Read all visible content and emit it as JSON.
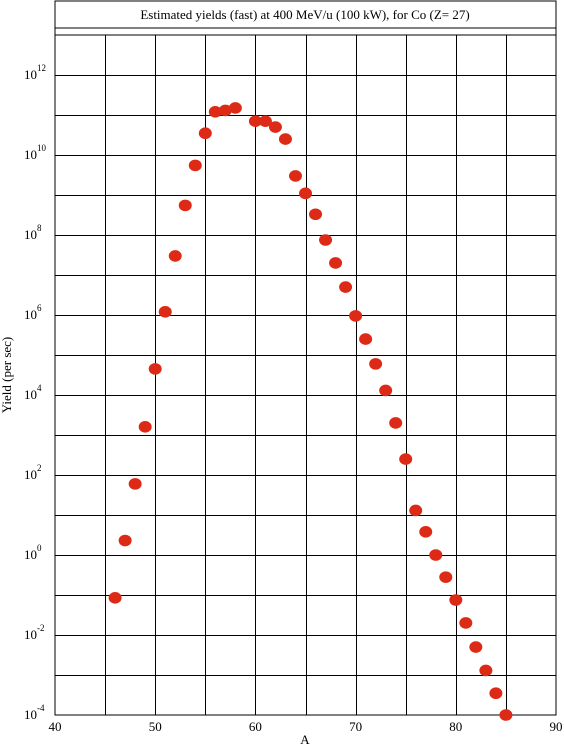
{
  "chart_data": {
    "type": "scatter",
    "title": "Estimated yields (fast) at 400 MeV/u (100 kW), for Co (Z= 27)",
    "xlabel": "A",
    "ylabel": "Yield (per sec)",
    "xlim": [
      40,
      90
    ],
    "ylim_log10": [
      -4,
      13
    ],
    "y_scale": "log",
    "grid": true,
    "legend": "none",
    "marker_color": "#dd2a16",
    "x_ticks": [
      "40",
      "50",
      "60",
      "70",
      "80",
      "90"
    ],
    "y_ticks": [
      {
        "base": "10",
        "exp": "12"
      },
      {
        "base": "10",
        "exp": "10"
      },
      {
        "base": "10",
        "exp": "8"
      },
      {
        "base": "10",
        "exp": "6"
      },
      {
        "base": "10",
        "exp": "4"
      },
      {
        "base": "10",
        "exp": "2"
      },
      {
        "base": "10",
        "exp": "0"
      },
      {
        "base": "10",
        "exp": "-2"
      },
      {
        "base": "10",
        "exp": "-4"
      }
    ],
    "points": [
      {
        "A": 46,
        "yield": 0.085
      },
      {
        "A": 47,
        "yield": 2.3
      },
      {
        "A": 48,
        "yield": 60.0
      },
      {
        "A": 49,
        "yield": 1600.0
      },
      {
        "A": 50,
        "yield": 45000.0
      },
      {
        "A": 51,
        "yield": 1200000.0
      },
      {
        "A": 52,
        "yield": 30000000.0
      },
      {
        "A": 53,
        "yield": 550000000.0
      },
      {
        "A": 54,
        "yield": 5500000000.0
      },
      {
        "A": 55,
        "yield": 35000000000.0
      },
      {
        "A": 56,
        "yield": 120000000000.0
      },
      {
        "A": 57,
        "yield": 130000000000.0
      },
      {
        "A": 58,
        "yield": 150000000000.0
      },
      {
        "A": 60,
        "yield": 70000000000.0
      },
      {
        "A": 61,
        "yield": 70000000000.0
      },
      {
        "A": 62,
        "yield": 50000000000.0
      },
      {
        "A": 63,
        "yield": 25000000000.0
      },
      {
        "A": 64,
        "yield": 3000000000.0
      },
      {
        "A": 65,
        "yield": 1100000000.0
      },
      {
        "A": 66,
        "yield": 330000000.0
      },
      {
        "A": 67,
        "yield": 75000000.0
      },
      {
        "A": 68,
        "yield": 20000000.0
      },
      {
        "A": 69,
        "yield": 5000000.0
      },
      {
        "A": 70,
        "yield": 950000.0
      },
      {
        "A": 71,
        "yield": 250000.0
      },
      {
        "A": 72,
        "yield": 60000.0
      },
      {
        "A": 73,
        "yield": 13000.0
      },
      {
        "A": 74,
        "yield": 2000.0
      },
      {
        "A": 75,
        "yield": 250.0
      },
      {
        "A": 76,
        "yield": 13.0
      },
      {
        "A": 77,
        "yield": 3.8
      },
      {
        "A": 78,
        "yield": 1.0
      },
      {
        "A": 79,
        "yield": 0.28
      },
      {
        "A": 80,
        "yield": 0.075
      },
      {
        "A": 81,
        "yield": 0.02
      },
      {
        "A": 82,
        "yield": 0.005
      },
      {
        "A": 83,
        "yield": 0.0013
      },
      {
        "A": 84,
        "yield": 0.00035
      },
      {
        "A": 85,
        "yield": 0.0001
      }
    ]
  }
}
